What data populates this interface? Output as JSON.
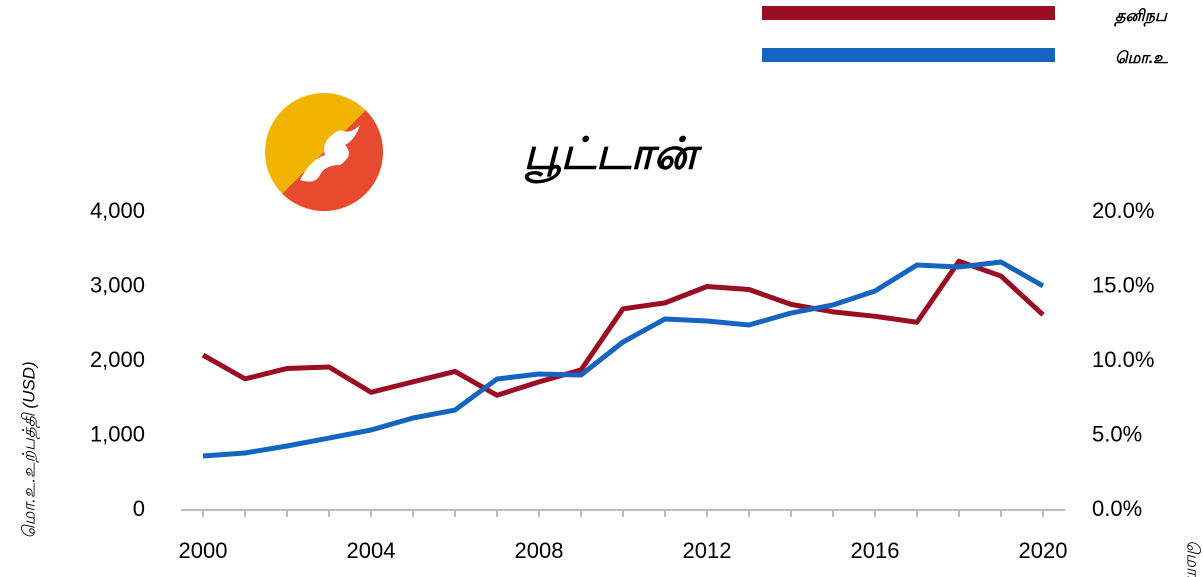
{
  "chart_data": {
    "type": "line",
    "title": "பூட்டான்",
    "y_label": "மொ.உ.உற்பத்தி (USD)",
    "y2_label": "மொ.உ.",
    "x": [
      2000,
      2001,
      2002,
      2003,
      2004,
      2005,
      2006,
      2007,
      2008,
      2009,
      2010,
      2011,
      2012,
      2013,
      2014,
      2015,
      2016,
      2017,
      2018,
      2019,
      2020
    ],
    "series": [
      {
        "name": "தனிநப",
        "color": "#9b0d22",
        "axis": "y2",
        "values": [
          10.4,
          8.8,
          9.5,
          9.6,
          7.9,
          8.6,
          9.3,
          7.7,
          8.6,
          9.4,
          13.5,
          13.9,
          15.0,
          14.8,
          13.8,
          13.3,
          13.0,
          12.6,
          16.7,
          15.7,
          13.1
        ]
      },
      {
        "name": "மொ.உ",
        "color": "#1565c0",
        "values": [
          725,
          765,
          859,
          966,
          1074,
          1235,
          1342,
          1758,
          1826,
          1812,
          2255,
          2564,
          2537,
          2483,
          2644,
          2752,
          2940,
          3289,
          3262,
          3329,
          3007
        ]
      }
    ],
    "xlim": [
      2000,
      2020
    ],
    "xticks": [
      2000,
      2004,
      2008,
      2012,
      2016,
      2020
    ],
    "ylim": [
      0,
      4000
    ],
    "yticks": [
      0,
      {
        "value": 1000,
        "label": "1,000"
      },
      {
        "value": 2000,
        "label": "2,000"
      },
      {
        "value": 3000,
        "label": "3,000"
      },
      {
        "value": 4000,
        "label": "4,000"
      }
    ],
    "y2lim": [
      0,
      20
    ],
    "y2ticks": [
      {
        "value": 0,
        "label": "0.0%"
      },
      {
        "value": 5,
        "label": "5.0%"
      },
      {
        "value": 10,
        "label": "10.0%"
      },
      {
        "value": 15,
        "label": "15.0%"
      },
      {
        "value": 20,
        "label": "20.0%"
      }
    ]
  }
}
